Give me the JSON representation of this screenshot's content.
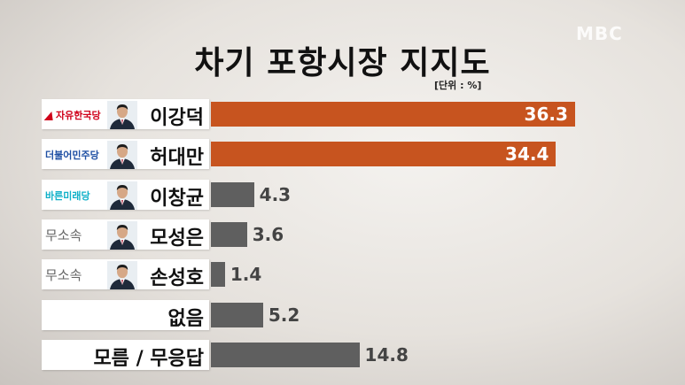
{
  "header": {
    "logo": "MBC",
    "title": "차기 포항시장 지지도",
    "unit": "[단위 : %]"
  },
  "colors": {
    "highlight": "#c7541f",
    "gray": "#5f5f5f"
  },
  "chart_data": {
    "type": "bar",
    "orientation": "horizontal",
    "title": "차기 포항시장 지지도",
    "unit": "%",
    "categories": [
      "이강덕",
      "허대만",
      "이창균",
      "모성은",
      "손성호",
      "없음",
      "모름 / 무응답"
    ],
    "parties": [
      "자유한국당",
      "더불어민주당",
      "바른미래당",
      "무소속",
      "무소속",
      "",
      ""
    ],
    "values": [
      36.3,
      34.4,
      4.3,
      3.6,
      1.4,
      5.2,
      14.8
    ],
    "value_labels": [
      "36.3",
      "34.4",
      "4.3",
      "3.6",
      "1.4",
      "5.2",
      "14.8"
    ],
    "highlight": [
      true,
      true,
      false,
      false,
      false,
      false,
      false
    ],
    "has_photo": [
      true,
      true,
      true,
      true,
      true,
      false,
      false
    ],
    "party_colors": [
      "#d0021b",
      "#1e4fa3",
      "#0fb0c8",
      "#666666",
      "#666666",
      "",
      ""
    ]
  }
}
